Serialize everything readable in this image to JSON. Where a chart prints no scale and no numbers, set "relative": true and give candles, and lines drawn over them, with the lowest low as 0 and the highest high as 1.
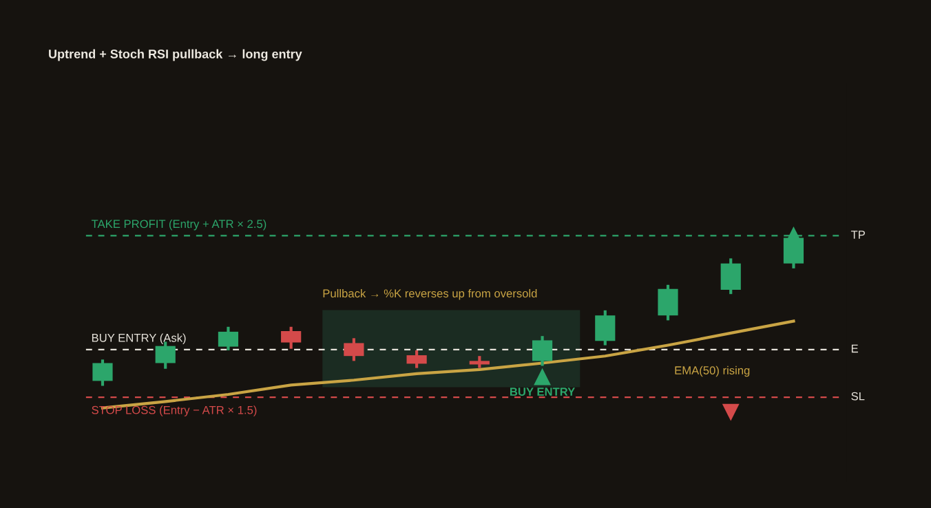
{
  "chart_data": {
    "type": "candlestick",
    "title": "Uptrend + Stoch RSI pullback → long entry",
    "relative": true,
    "categories": [
      null,
      null,
      null,
      null,
      null,
      null,
      null,
      null,
      null,
      null,
      null,
      null
    ],
    "ohlc": [
      [
        0.032,
        0.171,
        0,
        0.148
      ],
      [
        0.148,
        0.287,
        0.111,
        0.259
      ],
      [
        0.255,
        0.384,
        0.231,
        0.352
      ],
      [
        0.356,
        0.384,
        0.241,
        0.282
      ],
      [
        0.278,
        0.31,
        0.162,
        0.194
      ],
      [
        0.199,
        0.231,
        0.116,
        0.144
      ],
      [
        0.162,
        0.194,
        0.116,
        0.139
      ],
      [
        0.162,
        0.324,
        0.13,
        0.296
      ],
      [
        0.292,
        0.491,
        0.264,
        0.458
      ],
      [
        0.458,
        0.657,
        0.426,
        0.63
      ],
      [
        0.625,
        0.829,
        0.597,
        0.796
      ],
      [
        0.796,
        1,
        0.764,
        0.963
      ]
    ],
    "colors": [
      "#2ca66b",
      "#2ca66b",
      "#2ca66b",
      "#d44a4a",
      "#d44a4a",
      "#d44a4a",
      "#d44a4a",
      "#2ca66b",
      "#2ca66b",
      "#2ca66b",
      "#2ca66b",
      "#2ca66b"
    ],
    "series": [
      {
        "type": "line",
        "name": "EMA(50) rising",
        "color": "#c9a444",
        "values": [
          -0.144,
          -0.102,
          -0.056,
          0.005,
          0.037,
          0.079,
          0.106,
          0.148,
          0.194,
          0.264,
          0.343,
          0.421
        ]
      },
      {
        "type": "scatter",
        "name": "BUY ENTRY",
        "color": "#2ca66b",
        "marker": "triangle",
        "values": [
          null,
          null,
          null,
          null,
          null,
          null,
          null,
          0.06,
          null,
          null,
          null,
          null
        ]
      },
      {
        "type": "scatter",
        "color": "#2ca66b",
        "marker": "triangle",
        "values": [
          null,
          null,
          null,
          null,
          null,
          null,
          null,
          null,
          null,
          null,
          null,
          0.981
        ]
      }
    ],
    "ref_lines": [
      {
        "axis": "y",
        "value": 0.977,
        "label": "TAKE PROFIT (Entry + ATR × 2.5)",
        "color": "#2ca66b",
        "line_style": "dashed"
      },
      {
        "axis": "y",
        "value": 0.236,
        "label": "BUY ENTRY (Ask)",
        "color": "#e6e2da",
        "line_style": "dashed"
      },
      {
        "axis": "y",
        "value": -0.074,
        "label": "STOP LOSS (Entry − ATR × 1.5)",
        "color": "#d44a4a",
        "line_style": "dashed"
      }
    ],
    "annotations": [
      "TP",
      "E",
      "SL",
      "Pullback → %K reverses up from oversold"
    ],
    "grid": false,
    "legend": false,
    "tick_labels": false
  }
}
